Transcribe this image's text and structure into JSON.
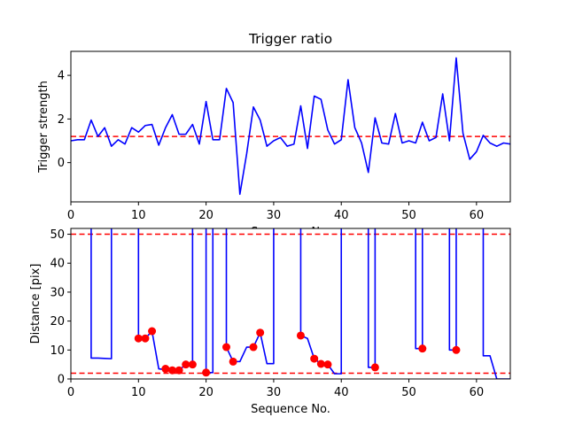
{
  "chart_data": [
    {
      "type": "line",
      "title": "Trigger ratio",
      "xlabel": "Sequence No.",
      "ylabel": "Trigger strength",
      "xlim": [
        0,
        65
      ],
      "ylim": [
        -1.8,
        5.1
      ],
      "xticks": [
        0,
        10,
        20,
        30,
        40,
        50,
        60
      ],
      "yticks": [
        0,
        2,
        4
      ],
      "grid": false,
      "line_color": "#0000ff",
      "threshold": {
        "y": 1.2,
        "color": "#ff0000",
        "style": "dashed"
      },
      "series": [
        {
          "x": [
            0,
            1,
            2,
            3,
            4,
            5,
            6,
            7,
            8,
            9,
            10,
            11,
            12,
            13,
            14,
            15,
            16,
            17,
            18,
            19,
            20,
            21,
            22,
            23,
            24,
            25,
            26,
            27,
            28,
            29,
            30,
            31,
            32,
            33,
            34,
            35,
            36,
            37,
            38,
            39,
            40,
            41,
            42,
            43,
            44,
            45,
            46,
            47,
            48,
            49,
            50,
            51,
            52,
            53,
            54,
            55,
            56,
            57,
            58,
            59,
            60,
            61,
            62,
            63,
            64,
            65
          ],
          "y": [
            1.0,
            1.05,
            1.05,
            1.95,
            1.2,
            1.6,
            0.75,
            1.05,
            0.85,
            1.6,
            1.4,
            1.7,
            1.75,
            0.8,
            1.6,
            2.2,
            1.3,
            1.3,
            1.75,
            0.85,
            2.8,
            1.05,
            1.05,
            3.4,
            2.75,
            -1.45,
            0.4,
            2.55,
            1.95,
            0.75,
            1.0,
            1.15,
            0.75,
            0.85,
            2.6,
            0.65,
            3.05,
            2.9,
            1.5,
            0.85,
            1.05,
            3.8,
            1.6,
            0.9,
            -0.45,
            2.05,
            0.9,
            0.85,
            2.25,
            0.9,
            1.0,
            0.9,
            1.85,
            1.0,
            1.15,
            3.15,
            1.0,
            4.8,
            1.35,
            0.15,
            0.5,
            1.25,
            0.9,
            0.75,
            0.9,
            0.85
          ]
        }
      ]
    },
    {
      "type": "line",
      "title": "",
      "xlabel": "Sequence No.",
      "ylabel": "Distance [pix]",
      "xlim": [
        0,
        65
      ],
      "ylim": [
        0,
        52
      ],
      "xticks": [
        0,
        10,
        20,
        30,
        40,
        50,
        60
      ],
      "yticks": [
        0,
        10,
        20,
        30,
        40,
        50
      ],
      "grid": false,
      "line_color": "#0000ff",
      "marker_color": "#ff0000",
      "thresholds": [
        {
          "y": 50,
          "color": "#ff0000",
          "style": "dashed"
        },
        {
          "y": 2,
          "color": "#ff0000",
          "style": "dashed"
        }
      ],
      "series": [
        {
          "x": [
            3,
            3,
            4,
            5,
            6,
            6,
            10,
            10,
            11,
            12,
            13,
            14,
            15,
            16,
            17,
            18,
            18,
            20,
            20,
            21,
            21,
            23,
            23,
            24,
            25,
            26,
            27,
            28,
            28,
            29,
            30,
            30,
            34,
            34,
            35,
            36,
            37,
            38,
            39,
            40,
            40,
            44,
            44,
            45,
            45,
            51,
            51,
            52,
            52,
            56,
            56,
            57,
            57,
            61,
            61,
            62,
            63,
            65
          ],
          "y": [
            60,
            7.2,
            7.2,
            7.1,
            7.0,
            60,
            60,
            14,
            14,
            16.5,
            3.5,
            3.2,
            3.0,
            3.0,
            5.0,
            5.0,
            60,
            60,
            2.2,
            2.2,
            60,
            60,
            11,
            6,
            6,
            11,
            11,
            16,
            16,
            5.3,
            5.3,
            60,
            60,
            15,
            14,
            7,
            5.2,
            5.0,
            1.8,
            1.8,
            60,
            60,
            4,
            4,
            60,
            60,
            10.5,
            10.5,
            60,
            60,
            10,
            10,
            60,
            60,
            8,
            8,
            0,
            0
          ]
        }
      ],
      "markers": {
        "x": [
          10,
          11,
          12,
          14,
          15,
          16,
          17,
          18,
          20,
          23,
          24,
          27,
          28,
          34,
          36,
          37,
          38,
          45,
          52,
          57
        ],
        "y": [
          14,
          14,
          16.5,
          3.5,
          3.0,
          3.0,
          5.0,
          5.0,
          2.2,
          11,
          6,
          11,
          16,
          15,
          7,
          5.2,
          5.0,
          4,
          10.5,
          10
        ]
      }
    }
  ]
}
